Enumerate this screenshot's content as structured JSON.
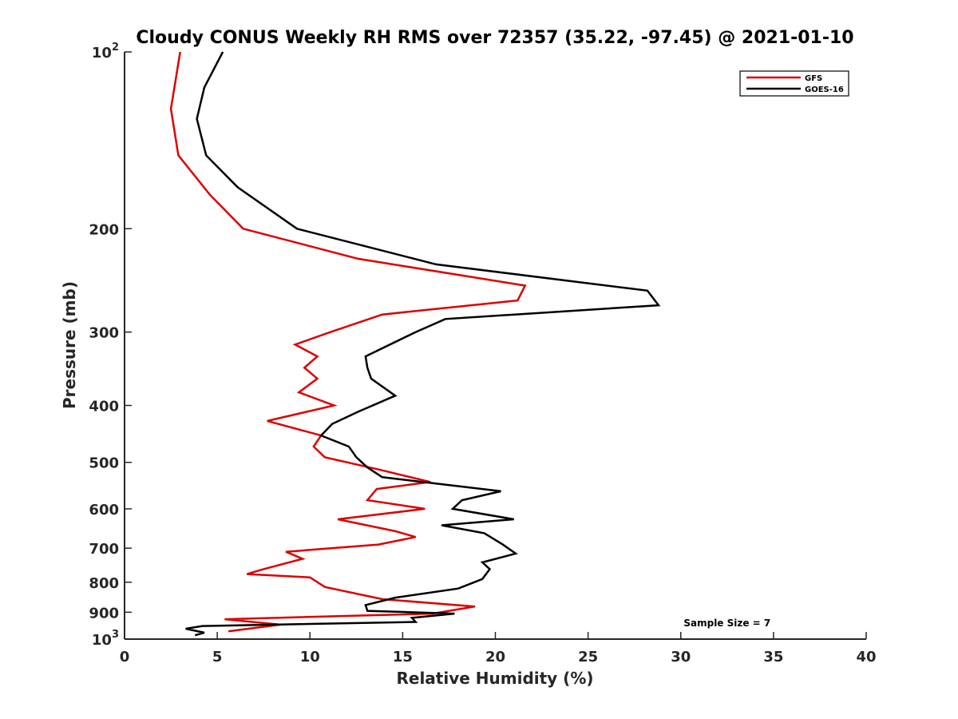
{
  "chart_data": {
    "type": "line",
    "orientation": "profile",
    "title": "Cloudy CONUS Weekly RH RMS over 72357 (35.22, -97.45) @ 2021-01-10",
    "xlabel": "Relative Humidity (%)",
    "ylabel": "Pressure (mb)",
    "xlim": [
      0,
      40
    ],
    "ylim": [
      100,
      1000
    ],
    "yscale": "log",
    "y_reversed": true,
    "x_ticks": [
      0,
      5,
      10,
      15,
      20,
      25,
      30,
      35,
      40
    ],
    "y_ticks": [
      {
        "value": 100,
        "base": "10",
        "exp": "2"
      },
      {
        "value": 200,
        "label": "200"
      },
      {
        "value": 300,
        "label": "300"
      },
      {
        "value": 400,
        "label": "400"
      },
      {
        "value": 500,
        "label": "500"
      },
      {
        "value": 600,
        "label": "600"
      },
      {
        "value": 700,
        "label": "700"
      },
      {
        "value": 800,
        "label": "800"
      },
      {
        "value": 900,
        "label": "900"
      },
      {
        "value": 1000,
        "base": "10",
        "exp": "3"
      }
    ],
    "grid": false,
    "legend_position": "top-right",
    "series": [
      {
        "name": "GFS",
        "color": "#dd0000",
        "points": [
          {
            "x": 3.0,
            "p": 100
          },
          {
            "x": 2.5,
            "p": 125
          },
          {
            "x": 2.9,
            "p": 150
          },
          {
            "x": 4.6,
            "p": 175
          },
          {
            "x": 6.4,
            "p": 200
          },
          {
            "x": 12.6,
            "p": 225
          },
          {
            "x": 21.6,
            "p": 250
          },
          {
            "x": 21.2,
            "p": 265
          },
          {
            "x": 13.9,
            "p": 280
          },
          {
            "x": 11.1,
            "p": 300
          },
          {
            "x": 9.2,
            "p": 315
          },
          {
            "x": 10.4,
            "p": 330
          },
          {
            "x": 9.7,
            "p": 345
          },
          {
            "x": 10.4,
            "p": 360
          },
          {
            "x": 9.4,
            "p": 380
          },
          {
            "x": 11.3,
            "p": 400
          },
          {
            "x": 7.7,
            "p": 425
          },
          {
            "x": 10.6,
            "p": 450
          },
          {
            "x": 10.2,
            "p": 470
          },
          {
            "x": 10.8,
            "p": 490
          },
          {
            "x": 13.8,
            "p": 515
          },
          {
            "x": 16.5,
            "p": 540
          },
          {
            "x": 13.6,
            "p": 555
          },
          {
            "x": 13.1,
            "p": 580
          },
          {
            "x": 16.2,
            "p": 600
          },
          {
            "x": 11.5,
            "p": 625
          },
          {
            "x": 14.6,
            "p": 655
          },
          {
            "x": 15.7,
            "p": 670
          },
          {
            "x": 13.7,
            "p": 690
          },
          {
            "x": 8.7,
            "p": 710
          },
          {
            "x": 9.6,
            "p": 730
          },
          {
            "x": 7.5,
            "p": 760
          },
          {
            "x": 6.6,
            "p": 775
          },
          {
            "x": 10.0,
            "p": 785
          },
          {
            "x": 10.8,
            "p": 815
          },
          {
            "x": 13.9,
            "p": 855
          },
          {
            "x": 18.9,
            "p": 880
          },
          {
            "x": 16.6,
            "p": 905
          },
          {
            "x": 5.4,
            "p": 925
          },
          {
            "x": 8.4,
            "p": 945
          },
          {
            "x": 5.6,
            "p": 970
          }
        ]
      },
      {
        "name": "GOES-16",
        "color": "#000000",
        "points": [
          {
            "x": 5.3,
            "p": 100
          },
          {
            "x": 4.3,
            "p": 115
          },
          {
            "x": 3.9,
            "p": 130
          },
          {
            "x": 4.4,
            "p": 150
          },
          {
            "x": 6.1,
            "p": 170
          },
          {
            "x": 9.3,
            "p": 200
          },
          {
            "x": 16.8,
            "p": 230
          },
          {
            "x": 28.2,
            "p": 255
          },
          {
            "x": 28.8,
            "p": 270
          },
          {
            "x": 17.3,
            "p": 285
          },
          {
            "x": 15.7,
            "p": 300
          },
          {
            "x": 13.0,
            "p": 330
          },
          {
            "x": 13.1,
            "p": 345
          },
          {
            "x": 13.3,
            "p": 360
          },
          {
            "x": 14.6,
            "p": 385
          },
          {
            "x": 12.6,
            "p": 410
          },
          {
            "x": 11.2,
            "p": 430
          },
          {
            "x": 10.6,
            "p": 450
          },
          {
            "x": 12.1,
            "p": 470
          },
          {
            "x": 12.5,
            "p": 490
          },
          {
            "x": 13.1,
            "p": 510
          },
          {
            "x": 13.9,
            "p": 530
          },
          {
            "x": 20.3,
            "p": 560
          },
          {
            "x": 18.2,
            "p": 580
          },
          {
            "x": 17.7,
            "p": 600
          },
          {
            "x": 21.0,
            "p": 625
          },
          {
            "x": 17.1,
            "p": 640
          },
          {
            "x": 19.4,
            "p": 660
          },
          {
            "x": 20.4,
            "p": 690
          },
          {
            "x": 21.1,
            "p": 715
          },
          {
            "x": 19.3,
            "p": 740
          },
          {
            "x": 19.7,
            "p": 760
          },
          {
            "x": 19.3,
            "p": 790
          },
          {
            "x": 18.0,
            "p": 820
          },
          {
            "x": 14.6,
            "p": 850
          },
          {
            "x": 13.0,
            "p": 875
          },
          {
            "x": 13.1,
            "p": 895
          },
          {
            "x": 17.8,
            "p": 905
          },
          {
            "x": 15.5,
            "p": 920
          },
          {
            "x": 15.7,
            "p": 935
          },
          {
            "x": 4.2,
            "p": 950
          },
          {
            "x": 3.3,
            "p": 960
          },
          {
            "x": 4.3,
            "p": 975
          },
          {
            "x": 3.8,
            "p": 985
          }
        ]
      }
    ],
    "annotations": [
      {
        "text": "Sample Size = 7",
        "x": 32.5,
        "p": 940
      }
    ]
  }
}
